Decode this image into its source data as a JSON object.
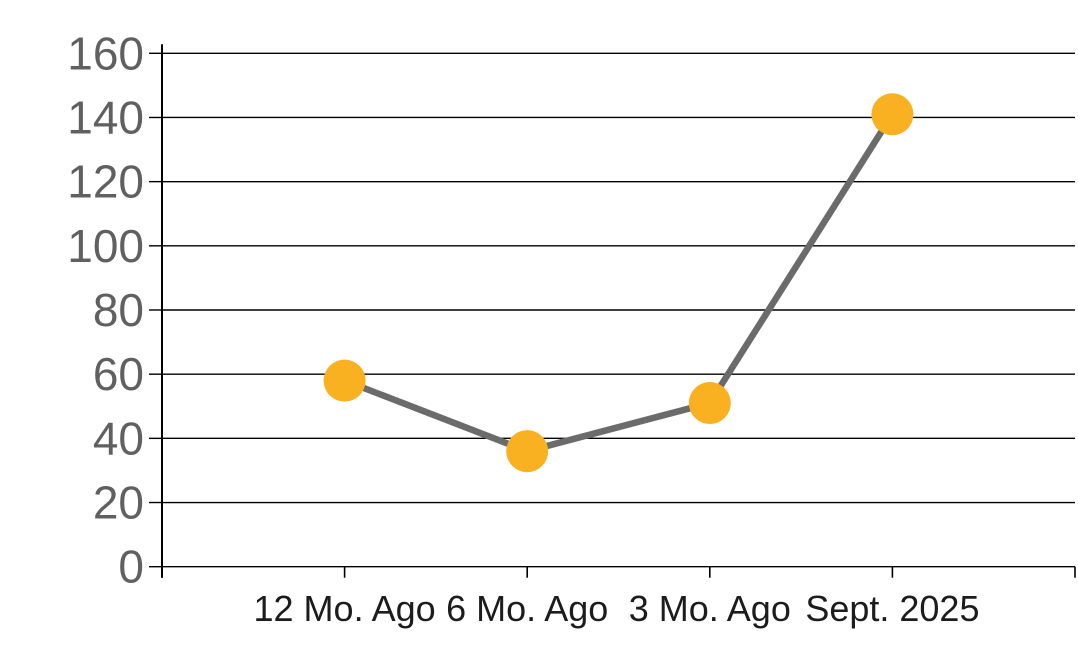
{
  "chart_data": {
    "type": "line",
    "title": "",
    "xlabel": "",
    "ylabel": "",
    "categories": [
      "12 Mo. Ago",
      "6 Mo. Ago",
      "3 Mo. Ago",
      "Sept. 2025"
    ],
    "series": [
      {
        "name": "values",
        "values": [
          58,
          36,
          51,
          141
        ]
      }
    ],
    "ylim": [
      0,
      160
    ],
    "ytick_step": 20,
    "ytick_labels": [
      "0",
      "20",
      "40",
      "60",
      "80",
      "100",
      "120",
      "140",
      "160"
    ],
    "grid": true,
    "legend_position": "none",
    "colors": {
      "line": "#6b6b6b",
      "marker": "#f9b021",
      "gridline": "#000000",
      "axis": "#000000",
      "y_tick_label": "#606060",
      "x_tick_label": "#1c1c1c",
      "background": "#ffffff"
    }
  }
}
